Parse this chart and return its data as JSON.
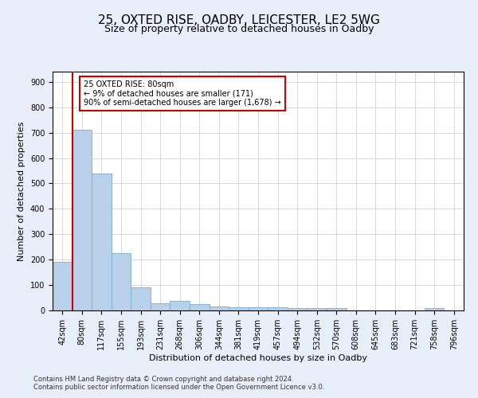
{
  "title1": "25, OXTED RISE, OADBY, LEICESTER, LE2 5WG",
  "title2": "Size of property relative to detached houses in Oadby",
  "xlabel": "Distribution of detached houses by size in Oadby",
  "ylabel": "Number of detached properties",
  "categories": [
    "42sqm",
    "80sqm",
    "117sqm",
    "155sqm",
    "193sqm",
    "231sqm",
    "268sqm",
    "306sqm",
    "344sqm",
    "381sqm",
    "419sqm",
    "457sqm",
    "494sqm",
    "532sqm",
    "570sqm",
    "608sqm",
    "645sqm",
    "683sqm",
    "721sqm",
    "758sqm",
    "796sqm"
  ],
  "values": [
    190,
    710,
    540,
    225,
    92,
    28,
    38,
    25,
    17,
    14,
    14,
    12,
    9,
    10,
    8,
    0,
    0,
    0,
    0,
    10,
    0
  ],
  "bar_color": "#b8d0ea",
  "bar_edge_color": "#7aadd4",
  "vline_color": "#cc0000",
  "annotation_text": "25 OXTED RISE: 80sqm\n← 9% of detached houses are smaller (171)\n90% of semi-detached houses are larger (1,678) →",
  "annotation_box_color": "#ffffff",
  "annotation_box_edge": "#cc0000",
  "footer1": "Contains HM Land Registry data © Crown copyright and database right 2024.",
  "footer2": "Contains public sector information licensed under the Open Government Licence v3.0.",
  "ylim": [
    0,
    940
  ],
  "yticks": [
    0,
    100,
    200,
    300,
    400,
    500,
    600,
    700,
    800,
    900
  ],
  "background_color": "#e8eef8",
  "plot_bg_color": "#ffffff",
  "grid_color": "#cccccc",
  "title1_fontsize": 11,
  "title2_fontsize": 9,
  "xlabel_fontsize": 8,
  "ylabel_fontsize": 8,
  "tick_fontsize": 7,
  "footer_fontsize": 6
}
